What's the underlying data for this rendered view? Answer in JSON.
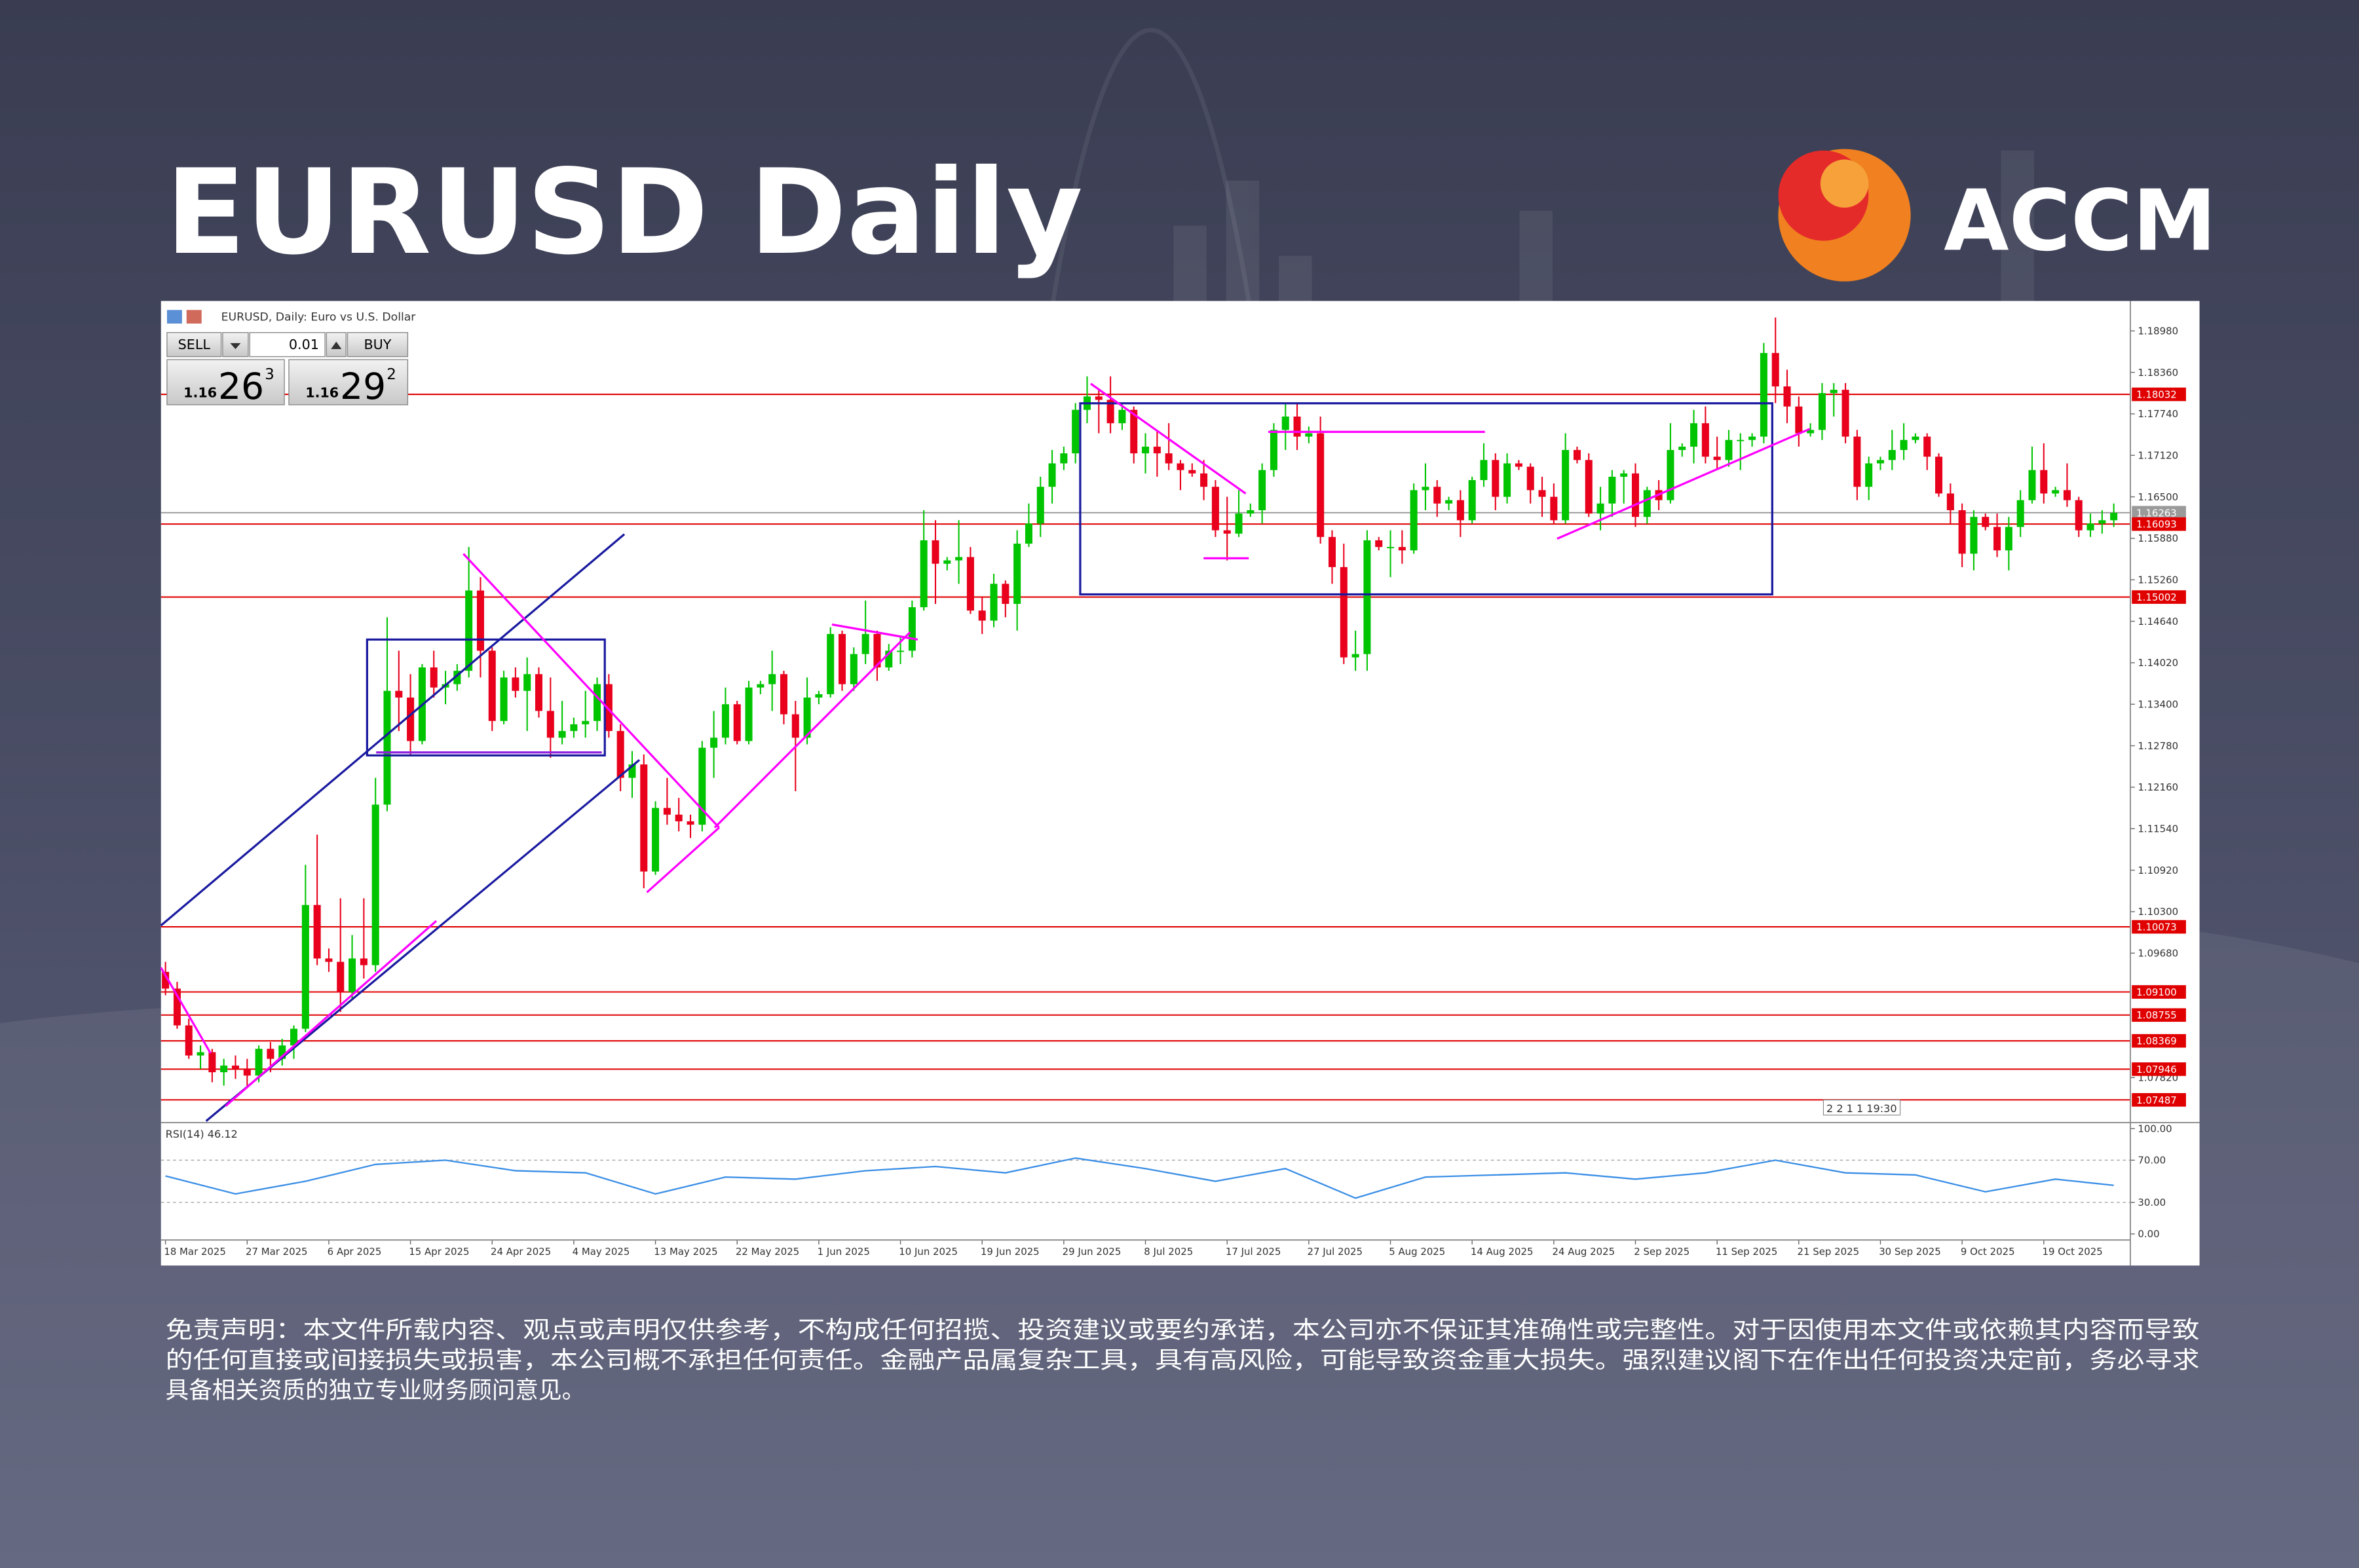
{
  "header": {
    "title": "EURUSD Daily",
    "brand": "ACCM"
  },
  "trade_panel": {
    "sell": "SELL",
    "lot": "0.01",
    "buy": "BUY",
    "bid_big": "1.16",
    "bid_pips": "26",
    "bid_frac": "3",
    "ask_big": "1.16",
    "ask_pips": "29",
    "ask_frac": "2"
  },
  "chart_data": {
    "type": "candlestick",
    "title": "EURUSD, Daily: Euro vs U.S. Dollar",
    "up_color": "#00c400",
    "down_color": "#e8001c",
    "ylim": [
      1.0717,
      1.1936
    ],
    "yticks": [
      {
        "value": 1.1898,
        "label": "1.18980"
      },
      {
        "value": 1.1836,
        "label": "1.18360"
      },
      {
        "value": 1.1774,
        "label": "1.17740"
      },
      {
        "value": 1.1712,
        "label": "1.17120"
      },
      {
        "value": 1.165,
        "label": "1.16500"
      },
      {
        "value": 1.1588,
        "label": "1.15880"
      },
      {
        "value": 1.1526,
        "label": "1.15260"
      },
      {
        "value": 1.1464,
        "label": "1.14640"
      },
      {
        "value": 1.1402,
        "label": "1.14020"
      },
      {
        "value": 1.134,
        "label": "1.13400"
      },
      {
        "value": 1.1278,
        "label": "1.12780"
      },
      {
        "value": 1.1216,
        "label": "1.12160"
      },
      {
        "value": 1.1154,
        "label": "1.11540"
      },
      {
        "value": 1.1092,
        "label": "1.10920"
      },
      {
        "value": 1.103,
        "label": "1.10300"
      },
      {
        "value": 1.0968,
        "label": "1.09680"
      },
      {
        "value": 1.0782,
        "label": "1.07820"
      }
    ],
    "levels": [
      {
        "value": 1.18032,
        "label": "1.18032",
        "color": "#e00000"
      },
      {
        "value": 1.16263,
        "label": "1.16263",
        "color": "#9a9a9a"
      },
      {
        "value": 1.16093,
        "label": "1.16093",
        "color": "#e00000"
      },
      {
        "value": 1.15002,
        "label": "1.15002",
        "color": "#e00000"
      },
      {
        "value": 1.10073,
        "label": "1.10073",
        "color": "#e00000"
      },
      {
        "value": 1.091,
        "label": "1.09100",
        "color": "#e00000"
      },
      {
        "value": 1.08755,
        "label": "1.08755",
        "color": "#e00000"
      },
      {
        "value": 1.08369,
        "label": "1.08369",
        "color": "#e00000"
      },
      {
        "value": 1.07946,
        "label": "1.07946",
        "color": "#e00000"
      },
      {
        "value": 1.07487,
        "label": "1.07487",
        "color": "#e00000"
      }
    ],
    "xticks": [
      {
        "value": 0,
        "label": "18 Mar 2025"
      },
      {
        "value": 7,
        "label": "27 Mar 2025"
      },
      {
        "value": 14,
        "label": "6 Apr 2025"
      },
      {
        "value": 21,
        "label": "15 Apr 2025"
      },
      {
        "value": 28,
        "label": "24 Apr 2025"
      },
      {
        "value": 35,
        "label": "4 May 2025"
      },
      {
        "value": 42,
        "label": "13 May 2025"
      },
      {
        "value": 49,
        "label": "22 May 2025"
      },
      {
        "value": 56,
        "label": "1 Jun 2025"
      },
      {
        "value": 63,
        "label": "10 Jun 2025"
      },
      {
        "value": 70,
        "label": "19 Jun 2025"
      },
      {
        "value": 77,
        "label": "29 Jun 2025"
      },
      {
        "value": 84,
        "label": "8 Jul 2025"
      },
      {
        "value": 91,
        "label": "17 Jul 2025"
      },
      {
        "value": 98,
        "label": "27 Jul 2025"
      },
      {
        "value": 105,
        "label": "5 Aug 2025"
      },
      {
        "value": 112,
        "label": "14 Aug 2025"
      },
      {
        "value": 119,
        "label": "24 Aug 2025"
      },
      {
        "value": 126,
        "label": "2 Sep 2025"
      },
      {
        "value": 133,
        "label": "11 Sep 2025"
      },
      {
        "value": 140,
        "label": "21 Sep 2025"
      },
      {
        "value": 147,
        "label": "30 Sep 2025"
      },
      {
        "value": 154,
        "label": "9 Oct 2025"
      },
      {
        "value": 161,
        "label": "19 Oct 2025"
      }
    ],
    "candles": [
      [
        1.094,
        1.0955,
        1.0905,
        1.0915
      ],
      [
        1.0915,
        1.0925,
        1.0855,
        1.086
      ],
      [
        1.086,
        1.087,
        1.081,
        1.0815
      ],
      [
        1.0815,
        1.083,
        1.0795,
        1.082
      ],
      [
        1.082,
        1.0825,
        1.0775,
        1.079
      ],
      [
        1.079,
        1.081,
        1.077,
        1.08
      ],
      [
        1.08,
        1.0815,
        1.078,
        1.0795
      ],
      [
        1.0795,
        1.081,
        1.077,
        1.0785
      ],
      [
        1.0785,
        1.083,
        1.0775,
        1.0825
      ],
      [
        1.0825,
        1.0835,
        1.079,
        1.081
      ],
      [
        1.081,
        1.084,
        1.08,
        1.083
      ],
      [
        1.083,
        1.086,
        1.081,
        1.0855
      ],
      [
        1.0855,
        1.11,
        1.085,
        1.104
      ],
      [
        1.104,
        1.1145,
        1.095,
        1.096
      ],
      [
        1.096,
        1.0975,
        1.094,
        1.0955
      ],
      [
        1.0955,
        1.105,
        1.088,
        1.091
      ],
      [
        1.091,
        1.0995,
        1.09,
        1.096
      ],
      [
        1.096,
        1.105,
        1.093,
        1.095
      ],
      [
        1.095,
        1.123,
        1.094,
        1.119
      ],
      [
        1.119,
        1.147,
        1.118,
        1.136
      ],
      [
        1.136,
        1.142,
        1.13,
        1.135
      ],
      [
        1.135,
        1.1385,
        1.1265,
        1.1285
      ],
      [
        1.1285,
        1.14,
        1.128,
        1.1395
      ],
      [
        1.1395,
        1.142,
        1.135,
        1.1365
      ],
      [
        1.1365,
        1.139,
        1.134,
        1.137
      ],
      [
        1.137,
        1.14,
        1.136,
        1.139
      ],
      [
        1.139,
        1.1575,
        1.138,
        1.151
      ],
      [
        1.151,
        1.153,
        1.138,
        1.142
      ],
      [
        1.142,
        1.1425,
        1.13,
        1.1315
      ],
      [
        1.1315,
        1.139,
        1.131,
        1.138
      ],
      [
        1.138,
        1.1395,
        1.135,
        1.136
      ],
      [
        1.136,
        1.141,
        1.13,
        1.1385
      ],
      [
        1.1385,
        1.1395,
        1.132,
        1.133
      ],
      [
        1.133,
        1.138,
        1.126,
        1.129
      ],
      [
        1.129,
        1.1345,
        1.128,
        1.13
      ],
      [
        1.13,
        1.132,
        1.129,
        1.131
      ],
      [
        1.131,
        1.136,
        1.129,
        1.1315
      ],
      [
        1.1315,
        1.138,
        1.13,
        1.137
      ],
      [
        1.137,
        1.1385,
        1.129,
        1.13
      ],
      [
        1.13,
        1.131,
        1.121,
        1.123
      ],
      [
        1.123,
        1.127,
        1.12,
        1.125
      ],
      [
        1.125,
        1.1265,
        1.1065,
        1.109
      ],
      [
        1.109,
        1.1195,
        1.1085,
        1.1185
      ],
      [
        1.1185,
        1.123,
        1.116,
        1.1175
      ],
      [
        1.1175,
        1.12,
        1.115,
        1.1165
      ],
      [
        1.1165,
        1.1175,
        1.114,
        1.116
      ],
      [
        1.116,
        1.1285,
        1.115,
        1.1275
      ],
      [
        1.1275,
        1.133,
        1.123,
        1.129
      ],
      [
        1.129,
        1.1365,
        1.128,
        1.134
      ],
      [
        1.134,
        1.1345,
        1.128,
        1.1285
      ],
      [
        1.1285,
        1.1375,
        1.128,
        1.1365
      ],
      [
        1.1365,
        1.1375,
        1.1355,
        1.137
      ],
      [
        1.137,
        1.142,
        1.133,
        1.1385
      ],
      [
        1.1385,
        1.139,
        1.131,
        1.1325
      ],
      [
        1.1325,
        1.1345,
        1.121,
        1.129
      ],
      [
        1.129,
        1.138,
        1.128,
        1.135
      ],
      [
        1.135,
        1.136,
        1.134,
        1.1355
      ],
      [
        1.1355,
        1.1455,
        1.135,
        1.1445
      ],
      [
        1.1445,
        1.145,
        1.136,
        1.137
      ],
      [
        1.137,
        1.1425,
        1.136,
        1.1415
      ],
      [
        1.1415,
        1.1495,
        1.14,
        1.1445
      ],
      [
        1.1445,
        1.145,
        1.1375,
        1.1395
      ],
      [
        1.1395,
        1.143,
        1.139,
        1.142
      ],
      [
        1.142,
        1.144,
        1.14,
        1.142
      ],
      [
        1.142,
        1.1495,
        1.141,
        1.1485
      ],
      [
        1.1485,
        1.163,
        1.148,
        1.1585
      ],
      [
        1.1585,
        1.1615,
        1.149,
        1.155
      ],
      [
        1.155,
        1.156,
        1.154,
        1.1555
      ],
      [
        1.1555,
        1.1615,
        1.152,
        1.156
      ],
      [
        1.156,
        1.1575,
        1.1475,
        1.148
      ],
      [
        1.148,
        1.15,
        1.1445,
        1.1465
      ],
      [
        1.1465,
        1.1535,
        1.1455,
        1.152
      ],
      [
        1.152,
        1.1525,
        1.147,
        1.149
      ],
      [
        1.149,
        1.16,
        1.145,
        1.158
      ],
      [
        1.158,
        1.164,
        1.1575,
        1.161
      ],
      [
        1.161,
        1.168,
        1.159,
        1.1665
      ],
      [
        1.1665,
        1.172,
        1.164,
        1.17
      ],
      [
        1.17,
        1.1725,
        1.169,
        1.1715
      ],
      [
        1.1715,
        1.179,
        1.17,
        1.178
      ],
      [
        1.178,
        1.183,
        1.176,
        1.18
      ],
      [
        1.18,
        1.181,
        1.1745,
        1.1795
      ],
      [
        1.1795,
        1.183,
        1.1745,
        1.176
      ],
      [
        1.176,
        1.179,
        1.175,
        1.178
      ],
      [
        1.178,
        1.1785,
        1.17,
        1.1715
      ],
      [
        1.1715,
        1.1745,
        1.1685,
        1.1725
      ],
      [
        1.1725,
        1.175,
        1.168,
        1.1715
      ],
      [
        1.1715,
        1.176,
        1.169,
        1.17
      ],
      [
        1.17,
        1.1705,
        1.166,
        1.169
      ],
      [
        1.169,
        1.17,
        1.168,
        1.1685
      ],
      [
        1.1685,
        1.1705,
        1.1645,
        1.1665
      ],
      [
        1.1665,
        1.1675,
        1.159,
        1.16
      ],
      [
        1.16,
        1.165,
        1.1555,
        1.1595
      ],
      [
        1.1595,
        1.166,
        1.159,
        1.1625
      ],
      [
        1.1625,
        1.164,
        1.162,
        1.163
      ],
      [
        1.163,
        1.17,
        1.161,
        1.169
      ],
      [
        1.169,
        1.176,
        1.168,
        1.175
      ],
      [
        1.175,
        1.179,
        1.172,
        1.177
      ],
      [
        1.177,
        1.179,
        1.172,
        1.174
      ],
      [
        1.174,
        1.1755,
        1.173,
        1.1745
      ],
      [
        1.1745,
        1.177,
        1.158,
        1.159
      ],
      [
        1.159,
        1.16,
        1.152,
        1.1545
      ],
      [
        1.1545,
        1.158,
        1.14,
        1.141
      ],
      [
        1.141,
        1.145,
        1.139,
        1.1415
      ],
      [
        1.1415,
        1.16,
        1.139,
        1.1585
      ],
      [
        1.1585,
        1.159,
        1.157,
        1.1575
      ],
      [
        1.1575,
        1.16,
        1.153,
        1.1575
      ],
      [
        1.1575,
        1.16,
        1.155,
        1.157
      ],
      [
        1.157,
        1.167,
        1.1565,
        1.166
      ],
      [
        1.166,
        1.17,
        1.163,
        1.1665
      ],
      [
        1.1665,
        1.1675,
        1.162,
        1.164
      ],
      [
        1.164,
        1.165,
        1.163,
        1.1645
      ],
      [
        1.1645,
        1.166,
        1.159,
        1.1615
      ],
      [
        1.1615,
        1.168,
        1.161,
        1.1675
      ],
      [
        1.1675,
        1.173,
        1.1665,
        1.1705
      ],
      [
        1.1705,
        1.1715,
        1.163,
        1.165
      ],
      [
        1.165,
        1.1715,
        1.164,
        1.17
      ],
      [
        1.17,
        1.1705,
        1.169,
        1.1695
      ],
      [
        1.1695,
        1.17,
        1.164,
        1.166
      ],
      [
        1.166,
        1.168,
        1.162,
        1.165
      ],
      [
        1.165,
        1.167,
        1.161,
        1.1615
      ],
      [
        1.1615,
        1.1745,
        1.161,
        1.172
      ],
      [
        1.172,
        1.1725,
        1.17,
        1.1705
      ],
      [
        1.1705,
        1.1715,
        1.162,
        1.1625
      ],
      [
        1.1625,
        1.1665,
        1.16,
        1.164
      ],
      [
        1.164,
        1.169,
        1.162,
        1.168
      ],
      [
        1.168,
        1.169,
        1.164,
        1.1685
      ],
      [
        1.1685,
        1.17,
        1.1605,
        1.162
      ],
      [
        1.162,
        1.1665,
        1.161,
        1.166
      ],
      [
        1.166,
        1.1675,
        1.163,
        1.1645
      ],
      [
        1.1645,
        1.176,
        1.164,
        1.172
      ],
      [
        1.172,
        1.173,
        1.171,
        1.1725
      ],
      [
        1.1725,
        1.178,
        1.17,
        1.176
      ],
      [
        1.176,
        1.1785,
        1.17,
        1.171
      ],
      [
        1.171,
        1.174,
        1.169,
        1.1705
      ],
      [
        1.1705,
        1.175,
        1.1695,
        1.1735
      ],
      [
        1.1735,
        1.1745,
        1.169,
        1.1735
      ],
      [
        1.1735,
        1.1745,
        1.1725,
        1.174
      ],
      [
        1.174,
        1.188,
        1.173,
        1.1865
      ],
      [
        1.1865,
        1.1918,
        1.179,
        1.1815
      ],
      [
        1.1815,
        1.184,
        1.176,
        1.1785
      ],
      [
        1.1785,
        1.18,
        1.1725,
        1.1745
      ],
      [
        1.1745,
        1.176,
        1.174,
        1.175
      ],
      [
        1.175,
        1.182,
        1.1735,
        1.1805
      ],
      [
        1.1805,
        1.182,
        1.177,
        1.181
      ],
      [
        1.181,
        1.182,
        1.173,
        1.174
      ],
      [
        1.174,
        1.175,
        1.1645,
        1.1665
      ],
      [
        1.1665,
        1.171,
        1.1645,
        1.17
      ],
      [
        1.17,
        1.171,
        1.169,
        1.1705
      ],
      [
        1.1705,
        1.175,
        1.169,
        1.172
      ],
      [
        1.172,
        1.176,
        1.1705,
        1.1735
      ],
      [
        1.1735,
        1.1745,
        1.173,
        1.174
      ],
      [
        1.174,
        1.1745,
        1.169,
        1.171
      ],
      [
        1.171,
        1.1715,
        1.165,
        1.1655
      ],
      [
        1.1655,
        1.167,
        1.161,
        1.163
      ],
      [
        1.163,
        1.164,
        1.1545,
        1.1565
      ],
      [
        1.1565,
        1.163,
        1.154,
        1.162
      ],
      [
        1.162,
        1.1625,
        1.16,
        1.1605
      ],
      [
        1.1605,
        1.1625,
        1.156,
        1.157
      ],
      [
        1.157,
        1.162,
        1.154,
        1.1605
      ],
      [
        1.1605,
        1.166,
        1.159,
        1.1645
      ],
      [
        1.1645,
        1.1725,
        1.164,
        1.169
      ],
      [
        1.169,
        1.173,
        1.164,
        1.1655
      ],
      [
        1.1655,
        1.1665,
        1.165,
        1.166
      ],
      [
        1.166,
        1.17,
        1.1635,
        1.1645
      ],
      [
        1.1645,
        1.165,
        1.159,
        1.16
      ],
      [
        1.16,
        1.1625,
        1.159,
        1.161
      ],
      [
        1.161,
        1.163,
        1.1595,
        1.1615
      ],
      [
        1.1615,
        1.164,
        1.1605,
        1.1626
      ]
    ],
    "rsi_label": "RSI(14) 46.12",
    "rsi_color": "#3a8ee6",
    "rsi_ylim": [
      0,
      100
    ],
    "rsi_yticks": [
      {
        "value": 100,
        "label": "100.00"
      },
      {
        "value": 70,
        "label": "70.00"
      },
      {
        "value": 30,
        "label": "30.00"
      },
      {
        "value": 0,
        "label": "0.00"
      }
    ],
    "rsi_x": [
      0,
      6,
      12,
      18,
      24,
      30,
      36,
      42,
      48,
      54,
      60,
      66,
      72,
      78,
      84,
      90,
      96,
      102,
      108,
      114,
      120,
      126,
      132,
      138,
      144,
      150,
      156,
      162,
      167
    ],
    "rsi": [
      55,
      38,
      50,
      66,
      70,
      60,
      58,
      38,
      54,
      52,
      60,
      64,
      58,
      72,
      62,
      50,
      62,
      34,
      54,
      56,
      58,
      52,
      58,
      70,
      58,
      56,
      40,
      52,
      46.12
    ],
    "timer": "2 2 1 1 19:30"
  },
  "disclaimer": [
    "免责声明：本文件所载内容、观点或声明仅供参考，不构成任何招揽、投资建议或要约承诺，本公司亦不保证其准确性或完整性。对于因使用本文件或依赖其内容而导致",
    "的任何直接或间接损失或损害，本公司概不承担任何责任。金融产品属复杂工具，具有高风险，可能导致资金重大损失。强烈建议阁下在作出任何投资决定前，务必寻求",
    "具备相关资质的独立专业财务顾问意见。"
  ]
}
